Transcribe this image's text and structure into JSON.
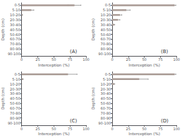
{
  "chart_data": [
    {
      "type": "bar",
      "orientation": "horizontal",
      "color": "#a89a94",
      "grid": false,
      "annotation": "(A)",
      "xlabel": "Interception (%)",
      "ylabel": "Depth (cm)",
      "categories": [
        "0-5",
        "5-10",
        "10-20",
        "20-30",
        "30-40",
        "40-50",
        "50-60",
        "60-70",
        "70-80",
        "80-90",
        "90-100"
      ],
      "values": [
        82,
        15,
        1,
        0,
        0,
        0,
        0,
        0,
        0,
        0,
        0
      ],
      "errors": [
        10,
        4,
        0.5,
        0,
        0,
        0,
        0,
        0,
        0,
        0,
        0
      ],
      "xlim": [
        0,
        100
      ],
      "xticks": [
        0,
        25,
        50,
        75,
        100
      ]
    },
    {
      "type": "bar",
      "orientation": "horizontal",
      "color": "#a89a94",
      "grid": false,
      "annotation": "(B)",
      "xlabel": "Interception (%)",
      "ylabel": "Depth (cm)",
      "categories": [
        "0-5",
        "5-10",
        "10-20",
        "20-30",
        "30-40",
        "40-50",
        "50-60",
        "60-70",
        "70-80",
        "80-90",
        "90-100"
      ],
      "values": [
        97,
        22,
        12,
        9,
        3,
        0,
        0,
        0,
        0,
        0,
        0
      ],
      "errors": [
        2,
        6,
        3,
        3,
        1,
        0,
        0,
        0,
        0,
        0,
        0
      ],
      "xlim": [
        0,
        100
      ],
      "xticks": [
        0,
        25,
        50,
        75,
        100
      ]
    },
    {
      "type": "bar",
      "orientation": "horizontal",
      "color": "#a89a94",
      "grid": false,
      "annotation": "(C)",
      "xlabel": "Interception (%)",
      "ylabel": "Depth (cm)",
      "categories": [
        "0-5",
        "5-10",
        "10-20",
        "20-30",
        "30-40",
        "40-50",
        "50-60",
        "60-70",
        "70-80",
        "80-90",
        "90-100"
      ],
      "values": [
        72,
        2,
        0,
        0,
        0,
        0,
        0,
        0,
        0,
        0,
        0
      ],
      "errors": [
        14,
        0.5,
        0,
        0,
        0,
        0,
        0,
        0,
        0,
        0,
        0
      ],
      "xlim": [
        0,
        100
      ],
      "xticks": [
        0,
        25,
        50,
        75,
        100
      ]
    },
    {
      "type": "bar",
      "orientation": "horizontal",
      "color": "#a89a94",
      "grid": false,
      "annotation": "(D)",
      "xlabel": "Interception (%)",
      "ylabel": "Depth (cm)",
      "categories": [
        "0-5",
        "5-10",
        "10-20",
        "20-30",
        "30-40",
        "40-50",
        "50-60",
        "60-70",
        "70-80",
        "80-90",
        "90-100"
      ],
      "values": [
        97,
        42,
        3,
        0,
        0,
        0,
        0,
        0,
        0,
        0,
        0
      ],
      "errors": [
        2,
        14,
        1,
        0,
        0,
        0,
        0,
        0,
        0,
        0,
        0
      ],
      "xlim": [
        0,
        100
      ],
      "xticks": [
        0,
        25,
        50,
        75,
        100
      ]
    }
  ]
}
